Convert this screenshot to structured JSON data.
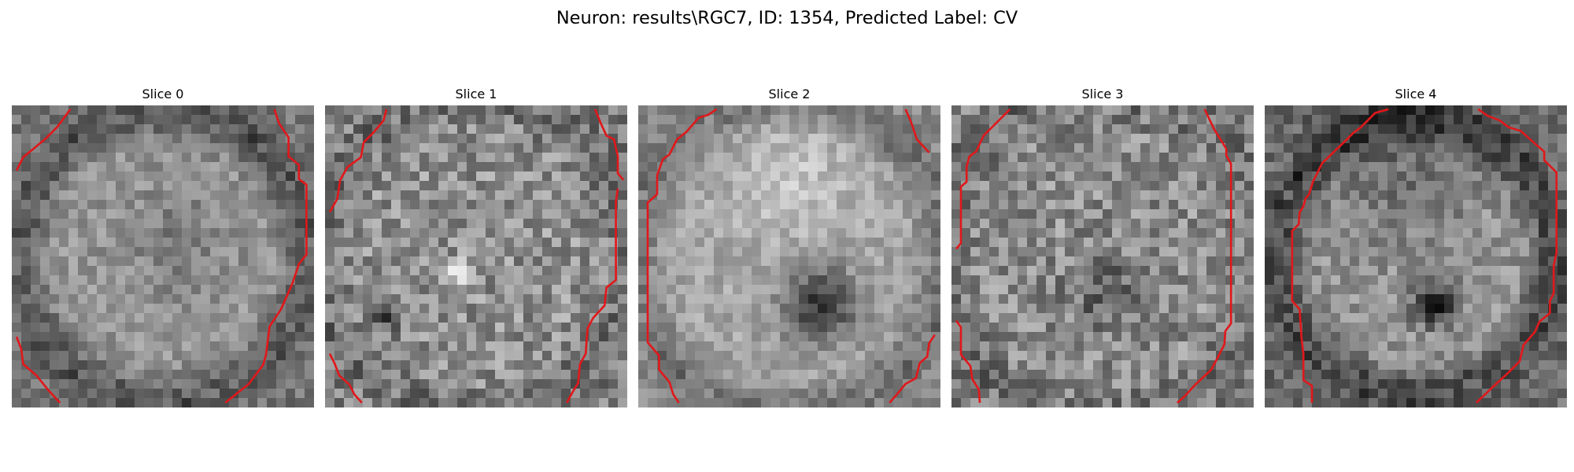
{
  "figure": {
    "title": "Neuron: results\\RGC7, ID: 1354, Predicted Label: CV"
  },
  "colors": {
    "contour": "#e0181b",
    "background": "#ffffff"
  },
  "slices": [
    {
      "title": "Slice 0"
    },
    {
      "title": "Slice 1"
    },
    {
      "title": "Slice 2"
    },
    {
      "title": "Slice 3"
    },
    {
      "title": "Slice 4"
    }
  ]
}
